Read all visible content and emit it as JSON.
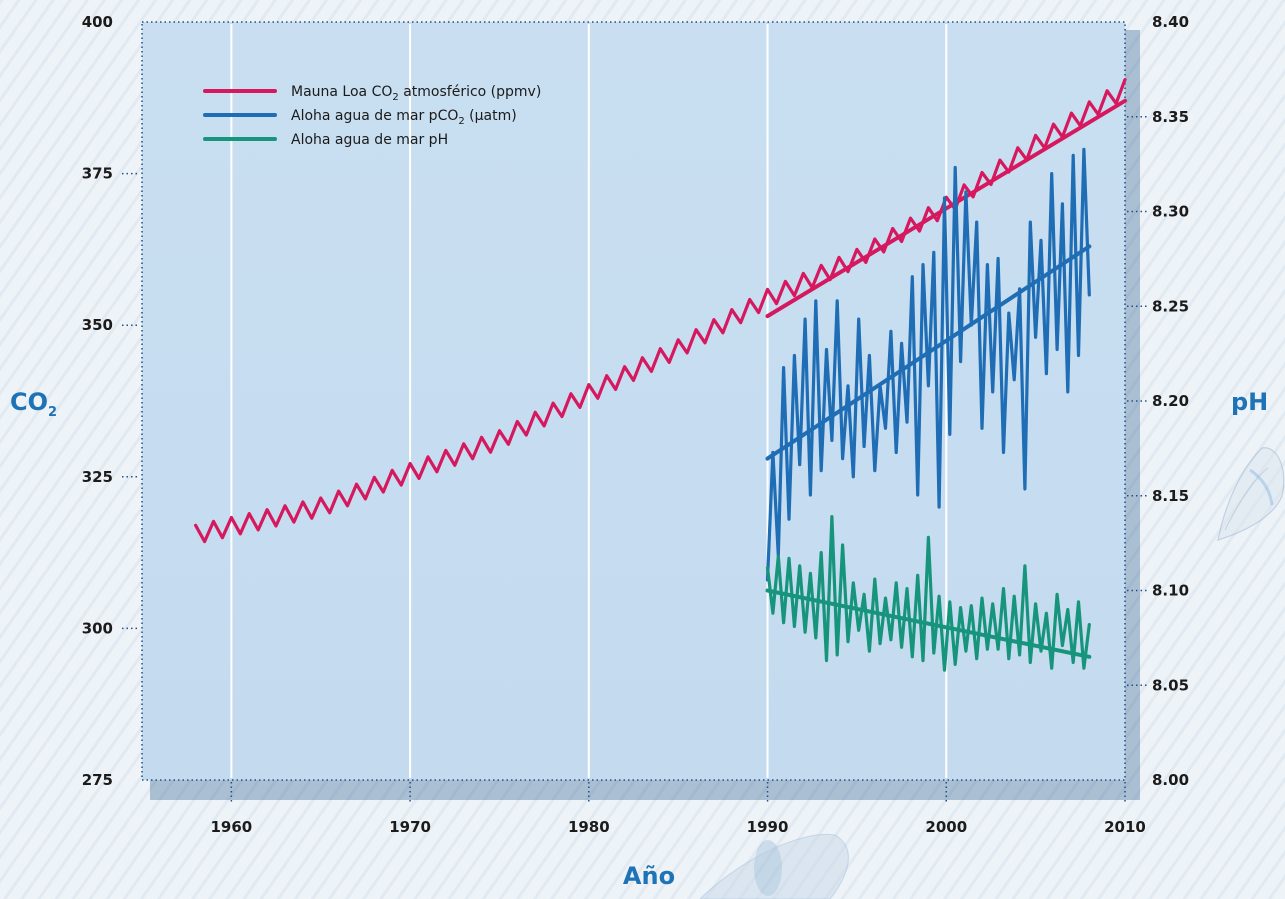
{
  "chart_data": {
    "type": "line",
    "ylabel_left": "CO",
    "ylabel_left_sub": "2",
    "ylabel_right": "pH",
    "xlabel": "Año",
    "x_ticks": [
      "1960",
      "1970",
      "1980",
      "1990",
      "2000",
      "2010"
    ],
    "y_left_ticks": [
      "275",
      "300",
      "325",
      "350",
      "375",
      "400"
    ],
    "y_right_ticks": [
      "8.00",
      "8.05",
      "8.10",
      "8.15",
      "8.20",
      "8.25",
      "8.30",
      "8.35",
      "8.40"
    ],
    "xlim": [
      1955,
      2010
    ],
    "ylim_left": [
      275,
      400
    ],
    "ylim_right": [
      8.0,
      8.4
    ],
    "grid": "vertical lines at decades",
    "legend_position": "top-left",
    "legend": [
      {
        "pre": "Mauna Loa CO",
        "sub": "2",
        "post": " atmosférico (ppmv)",
        "color": "#d6195e"
      },
      {
        "pre": "Aloha agua de mar pCO",
        "sub": "2",
        "post": " (µatm)",
        "color": "#1f6db5"
      },
      {
        "pre": "Aloha agua de mar pH",
        "sub": "",
        "post": "",
        "color": "#17957c"
      }
    ],
    "series": [
      {
        "name": "Mauna Loa CO2 atmosférico (ppmv)",
        "axis": "left",
        "color": "#d6195e",
        "seasonal": true,
        "x": [
          1958,
          1965,
          1970,
          1975,
          1980,
          1985,
          1990,
          1995,
          2000,
          2005,
          2010
        ],
        "y": [
          315.5,
          320.0,
          325.7,
          331.1,
          338.7,
          346.1,
          354.4,
          361.0,
          369.6,
          379.8,
          389.0
        ],
        "amplitude": 3.0
      },
      {
        "name": "Mauna Loa CO2 trend",
        "axis": "left",
        "color": "#d6195e",
        "x": [
          1990,
          2010
        ],
        "y": [
          351.5,
          387.0
        ]
      },
      {
        "name": "Aloha agua de mar pCO2 (µatm)",
        "axis": "left",
        "color": "#1f6db5",
        "x": [
          1990,
          1990.3,
          1990.6,
          1990.9,
          1991.2,
          1991.5,
          1991.8,
          1992.1,
          1992.4,
          1992.7,
          1993.0,
          1993.3,
          1993.6,
          1993.9,
          1994.2,
          1994.5,
          1994.8,
          1995.1,
          1995.4,
          1995.7,
          1996.0,
          1996.3,
          1996.6,
          1996.9,
          1997.2,
          1997.5,
          1997.8,
          1998.1,
          1998.4,
          1998.7,
          1999.0,
          1999.3,
          1999.6,
          1999.9,
          2000.2,
          2000.5,
          2000.8,
          2001.1,
          2001.4,
          2001.7,
          2002.0,
          2002.3,
          2002.6,
          2002.9,
          2003.2,
          2003.5,
          2003.8,
          2004.1,
          2004.4,
          2004.7,
          2005.0,
          2005.3,
          2005.6,
          2005.9,
          2006.2,
          2006.5,
          2006.8,
          2007.1,
          2007.4,
          2007.7,
          2008.0
        ],
        "y": [
          308,
          329,
          312,
          343,
          318,
          345,
          327,
          351,
          322,
          354,
          326,
          346,
          331,
          354,
          328,
          340,
          325,
          351,
          330,
          345,
          326,
          340,
          333,
          349,
          329,
          347,
          334,
          358,
          322,
          360,
          340,
          362,
          320,
          371,
          332,
          376,
          344,
          372,
          350,
          367,
          333,
          360,
          339,
          361,
          329,
          352,
          341,
          356,
          323,
          367,
          348,
          364,
          342,
          375,
          346,
          370,
          339,
          378,
          345,
          379,
          355
        ]
      },
      {
        "name": "Aloha agua de mar pCO2 trend",
        "axis": "left",
        "color": "#1f6db5",
        "x": [
          1990,
          2008
        ],
        "y": [
          328.0,
          363.0
        ]
      },
      {
        "name": "Aloha agua de mar pH",
        "axis": "right",
        "color": "#17957c",
        "x": [
          1990,
          1990.3,
          1990.6,
          1990.9,
          1991.2,
          1991.5,
          1991.8,
          1992.1,
          1992.4,
          1992.7,
          1993.0,
          1993.3,
          1993.6,
          1993.9,
          1994.2,
          1994.5,
          1994.8,
          1995.1,
          1995.4,
          1995.7,
          1996.0,
          1996.3,
          1996.6,
          1996.9,
          1997.2,
          1997.5,
          1997.8,
          1998.1,
          1998.4,
          1998.7,
          1999.0,
          1999.3,
          1999.6,
          1999.9,
          2000.2,
          2000.5,
          2000.8,
          2001.1,
          2001.4,
          2001.7,
          2002.0,
          2002.3,
          2002.6,
          2002.9,
          2003.2,
          2003.5,
          2003.8,
          2004.1,
          2004.4,
          2004.7,
          2005.0,
          2005.3,
          2005.6,
          2005.9,
          2006.2,
          2006.5,
          2006.8,
          2007.1,
          2007.4,
          2007.7,
          2008.0
        ],
        "y": [
          8.112,
          8.088,
          8.118,
          8.083,
          8.117,
          8.081,
          8.113,
          8.078,
          8.109,
          8.075,
          8.12,
          8.063,
          8.139,
          8.066,
          8.124,
          8.073,
          8.104,
          8.079,
          8.098,
          8.068,
          8.106,
          8.072,
          8.096,
          8.074,
          8.104,
          8.07,
          8.101,
          8.065,
          8.108,
          8.063,
          8.128,
          8.067,
          8.097,
          8.058,
          8.094,
          8.061,
          8.091,
          8.068,
          8.092,
          8.064,
          8.096,
          8.069,
          8.093,
          8.069,
          8.101,
          8.064,
          8.097,
          8.066,
          8.113,
          8.062,
          8.093,
          8.068,
          8.088,
          8.059,
          8.098,
          8.071,
          8.09,
          8.062,
          8.094,
          8.059,
          8.082
        ]
      },
      {
        "name": "Aloha agua de mar pH trend",
        "axis": "right",
        "color": "#17957c",
        "x": [
          1990,
          2008
        ],
        "y": [
          8.1,
          8.065
        ]
      }
    ]
  }
}
